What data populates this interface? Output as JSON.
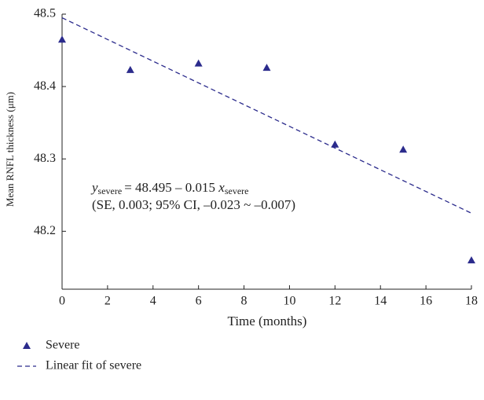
{
  "chart_data": {
    "type": "scatter",
    "y_label": "Mean RNFL thickness (μm)",
    "x_label": "Time (months)",
    "x": [
      0,
      3,
      6,
      9,
      12,
      15,
      18
    ],
    "series": [
      {
        "name": "Severe",
        "color": "#2b2b8c",
        "values": [
          48.465,
          48.423,
          48.432,
          48.426,
          48.32,
          48.313,
          48.16
        ]
      },
      {
        "name": "Linear fit of severe",
        "color": "#2b2b8c",
        "x": [
          0,
          18
        ],
        "values": [
          48.495,
          48.225
        ],
        "style": "dashed"
      }
    ],
    "xlim": [
      0,
      18
    ],
    "xticks": [
      0,
      2,
      4,
      6,
      8,
      10,
      12,
      14,
      16,
      18
    ],
    "ylim": [
      48.12,
      48.5
    ],
    "yticks": [
      48.2,
      48.3,
      48.4,
      48.5
    ],
    "annotation": {
      "lines": [
        {
          "y": "y",
          "y_sub": "severe",
          "eq": "= 48.495 – 0.015 ",
          "x": "x",
          "x_sub": "severe"
        },
        "(SE, 0.003; 95% CI, –0.023 ~ –0.007)"
      ]
    },
    "legend": "bottom"
  }
}
